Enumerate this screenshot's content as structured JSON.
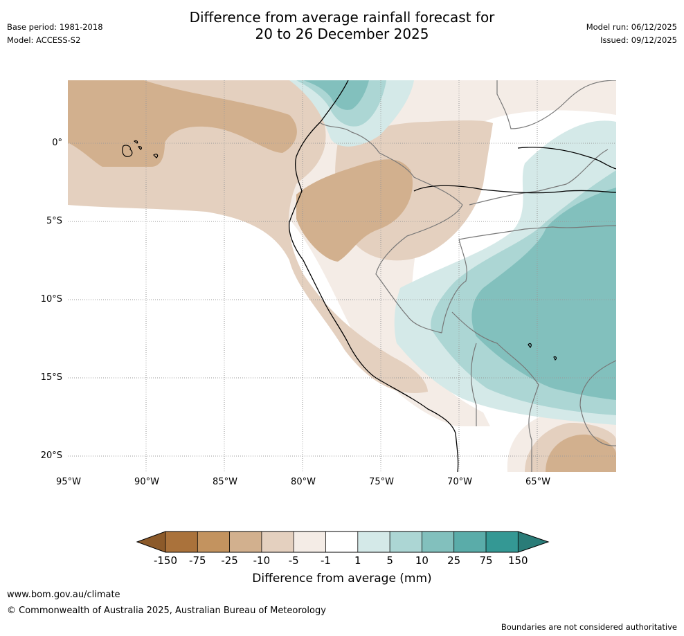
{
  "header": {
    "title_line1": "Difference from average rainfall forecast for",
    "title_line2": "20 to 26 December 2025",
    "base_period": "Base period: 1981-2018",
    "model": "Model: ACCESS-S2",
    "model_run": "Model run: 06/12/2025",
    "issued": "Issued: 09/12/2025"
  },
  "map": {
    "lat_labels": [
      "0°",
      "5°S",
      "10°S",
      "15°S",
      "20°S"
    ],
    "lon_labels": [
      "95°W",
      "90°W",
      "85°W",
      "80°W",
      "75°W",
      "70°W",
      "65°W"
    ],
    "colors": {
      "lt150": "#8c5a2a",
      "m150_75": "#aa723b",
      "m75_25": "#c3935f",
      "m25_10": "#d2b08e",
      "m10_5": "#e4d0bf",
      "m5_1": "#f4ece6",
      "m1_1": "#ffffff",
      "p1_5": "#d4e9e8",
      "p5_10": "#acd6d4",
      "p10_25": "#82c0bd",
      "p25_75": "#5aaca9",
      "p75_150": "#349894",
      "gt150": "#2a7c78"
    }
  },
  "legend": {
    "ticks": [
      "-150",
      "-75",
      "-25",
      "-10",
      "-5",
      "-1",
      "1",
      "5",
      "10",
      "25",
      "75",
      "150"
    ],
    "label": "Difference from average (mm)"
  },
  "footer": {
    "url": "www.bom.gov.au/climate",
    "copyright": "© Commonwealth of Australia 2025, Australian Bureau of Meteorology",
    "note": "Boundaries are not considered authoritative"
  }
}
